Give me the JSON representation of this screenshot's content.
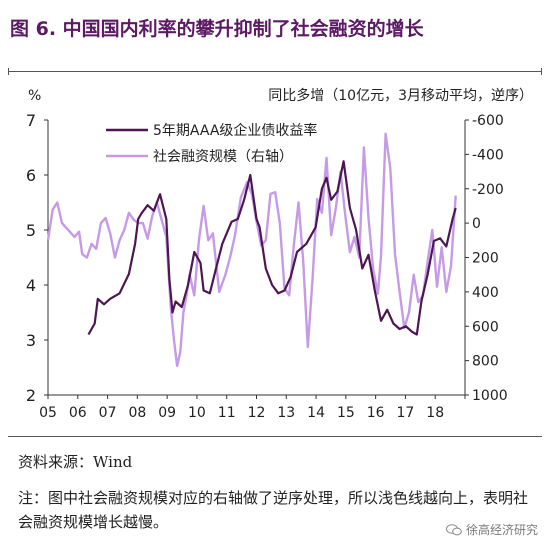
{
  "title": "图 6.  中国国内利率的攀升抑制了社会融资的增长",
  "source": "资料来源：Wind",
  "note": "注：图中社会融资规模对应的右轴做了逆序处理，所以浅色线越向上，表明社会融资规模增长越慢。",
  "watermark": "徐高经济研究",
  "colors": {
    "title": "#5b1a63",
    "dark_series": "#4e1553",
    "light_series": "#c59be8",
    "axis": "#333333"
  },
  "chart_data": {
    "type": "line",
    "ylabel_left": "%",
    "ylabel_right": "同比多增（10亿元，3月移动平均，逆序）",
    "ylim_left": [
      2,
      7
    ],
    "yticks_left": [
      2,
      3,
      4,
      5,
      6,
      7
    ],
    "ylim_right": [
      1000,
      -600
    ],
    "yticks_right": [
      -600,
      -400,
      -200,
      0,
      200,
      400,
      600,
      800,
      1000
    ],
    "x_tick_labels": [
      "05",
      "06",
      "07",
      "08",
      "09",
      "10",
      "11",
      "12",
      "13",
      "14",
      "15",
      "16",
      "17",
      "18"
    ],
    "xlim": [
      2005.0,
      2018.4
    ],
    "grid": false,
    "legend_position": "top-center",
    "series": [
      {
        "name": "5年期AAA级企业债收益率",
        "axis": "left",
        "color": "#4e1553",
        "x": [
          2006.3,
          2006.5,
          2006.6,
          2006.8,
          2007.0,
          2007.3,
          2007.6,
          2007.8,
          2007.9,
          2008.0,
          2008.2,
          2008.4,
          2008.6,
          2008.8,
          2008.9,
          2009.0,
          2009.1,
          2009.3,
          2009.5,
          2009.7,
          2009.9,
          2010.0,
          2010.2,
          2010.4,
          2010.6,
          2010.9,
          2011.1,
          2011.3,
          2011.5,
          2011.7,
          2011.8,
          2012.0,
          2012.2,
          2012.4,
          2012.6,
          2012.8,
          2013.0,
          2013.3,
          2013.6,
          2013.8,
          2013.95,
          2014.1,
          2014.3,
          2014.5,
          2014.7,
          2014.9,
          2015.1,
          2015.3,
          2015.5,
          2015.7,
          2015.9,
          2016.1,
          2016.3,
          2016.5,
          2016.7,
          2016.85,
          2017.0,
          2017.2,
          2017.4,
          2017.6,
          2017.8,
          2018.0,
          2018.1
        ],
        "values": [
          3.1,
          3.3,
          3.75,
          3.65,
          3.75,
          3.85,
          4.2,
          4.75,
          5.2,
          5.3,
          5.45,
          5.35,
          5.65,
          5.2,
          4.1,
          3.5,
          3.7,
          3.6,
          4.0,
          4.6,
          4.4,
          3.9,
          3.85,
          4.3,
          4.75,
          5.15,
          5.2,
          5.55,
          6.0,
          5.2,
          5.05,
          4.3,
          4.0,
          3.85,
          3.9,
          4.15,
          4.6,
          4.75,
          5.05,
          5.75,
          5.95,
          5.55,
          5.7,
          6.25,
          5.4,
          5.0,
          4.3,
          4.55,
          3.9,
          3.35,
          3.55,
          3.3,
          3.2,
          3.25,
          3.15,
          3.1,
          3.7,
          4.2,
          4.8,
          4.85,
          4.7,
          5.2,
          5.4
        ]
      },
      {
        "name": "社会融资规模（右轴）",
        "axis": "right",
        "color": "#c59be8",
        "x": [
          2005.0,
          2005.15,
          2005.3,
          2005.45,
          2005.55,
          2005.7,
          2005.85,
          2006.0,
          2006.1,
          2006.25,
          2006.4,
          2006.55,
          2006.7,
          2006.85,
          2007.0,
          2007.15,
          2007.3,
          2007.45,
          2007.6,
          2007.75,
          2007.9,
          2008.05,
          2008.2,
          2008.35,
          2008.5,
          2008.65,
          2008.8,
          2008.95,
          2009.05,
          2009.15,
          2009.25,
          2009.35,
          2009.45,
          2009.55,
          2009.7,
          2009.85,
          2010.0,
          2010.15,
          2010.3,
          2010.5,
          2010.7,
          2010.85,
          2011.0,
          2011.2,
          2011.4,
          2011.55,
          2011.7,
          2011.85,
          2012.0,
          2012.15,
          2012.3,
          2012.45,
          2012.6,
          2012.75,
          2012.9,
          2013.05,
          2013.2,
          2013.35,
          2013.5,
          2013.65,
          2013.8,
          2013.95,
          2014.1,
          2014.25,
          2014.4,
          2014.55,
          2014.7,
          2014.85,
          2015.0,
          2015.15,
          2015.3,
          2015.45,
          2015.6,
          2015.7,
          2015.85,
          2016.0,
          2016.15,
          2016.3,
          2016.45,
          2016.6,
          2016.75,
          2016.9,
          2017.05,
          2017.2,
          2017.35,
          2017.5,
          2017.65,
          2017.8,
          2017.95,
          2018.1
        ],
        "values": [
          100,
          -80,
          -120,
          0,
          20,
          50,
          80,
          50,
          180,
          200,
          120,
          150,
          0,
          -30,
          60,
          200,
          100,
          40,
          -60,
          -20,
          0,
          0,
          90,
          -40,
          -120,
          -20,
          80,
          500,
          680,
          830,
          750,
          520,
          420,
          300,
          420,
          100,
          -100,
          100,
          60,
          400,
          300,
          200,
          80,
          -150,
          -240,
          -170,
          -10,
          130,
          100,
          -170,
          -180,
          0,
          380,
          420,
          130,
          -120,
          220,
          720,
          330,
          -140,
          -60,
          -380,
          70,
          -90,
          -300,
          -50,
          170,
          80,
          200,
          -440,
          -30,
          270,
          410,
          190,
          -520,
          -320,
          180,
          400,
          610,
          520,
          300,
          460,
          420,
          220,
          40,
          370,
          140,
          400,
          250,
          -160
        ]
      }
    ]
  }
}
